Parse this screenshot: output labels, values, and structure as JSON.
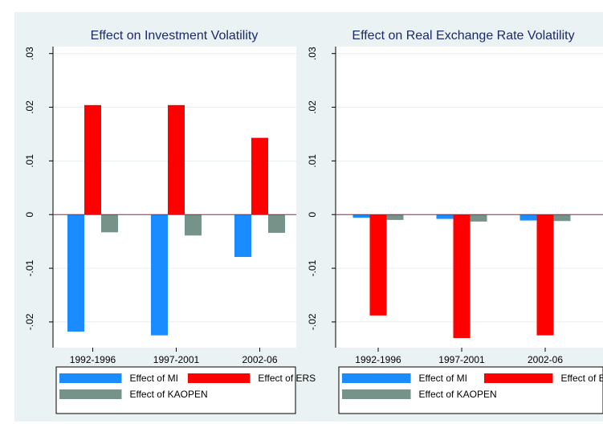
{
  "chart_data": [
    {
      "type": "bar",
      "title": "Effect on Investment Volatility",
      "categories": [
        "1992-1996",
        "1997-2001",
        "2002-06"
      ],
      "series": [
        {
          "name": "Effect of MI",
          "color": "#1a8cff",
          "values": [
            -0.0218,
            -0.0225,
            -0.0079
          ]
        },
        {
          "name": "Effect of ERS",
          "color": "#ff0000",
          "values": [
            0.0204,
            0.0204,
            0.0143
          ]
        },
        {
          "name": "Effect of KAOPEN",
          "color": "#76938a",
          "values": [
            -0.0033,
            -0.0039,
            -0.0034
          ]
        }
      ],
      "ylim": [
        -0.0248,
        0.0313
      ],
      "yticks": [
        {
          "value": -0.02,
          "label": "-.02"
        },
        {
          "value": -0.01,
          "label": "-.01"
        },
        0,
        {
          "value": 0.01,
          "label": ".01"
        },
        {
          "value": 0.02,
          "label": ".02"
        },
        {
          "value": 0.03,
          "label": ".03"
        }
      ],
      "grid": true,
      "legend": "bottom"
    },
    {
      "type": "bar",
      "title": "Effect on Real Exchange Rate Volatility",
      "categories": [
        "1992-1996",
        "1997-2001",
        "2002-06"
      ],
      "series": [
        {
          "name": "Effect of MI",
          "color": "#1a8cff",
          "values": [
            -0.0006,
            -0.0008,
            -0.0011
          ]
        },
        {
          "name": "Effect of ERS",
          "color": "#ff0000",
          "values": [
            -0.0188,
            -0.023,
            -0.0225
          ]
        },
        {
          "name": "Effect of KAOPEN",
          "color": "#76938a",
          "values": [
            -0.001,
            -0.0013,
            -0.0012
          ]
        }
      ],
      "ylim": [
        -0.0248,
        0.0313
      ],
      "yticks": [
        {
          "value": -0.02,
          "label": "-.02"
        },
        {
          "value": -0.01,
          "label": "-.01"
        },
        0,
        {
          "value": 0.01,
          "label": ".01"
        },
        {
          "value": 0.02,
          "label": ".02"
        },
        {
          "value": 0.03,
          "label": ".03"
        }
      ],
      "grid": true,
      "legend": "bottom"
    }
  ]
}
